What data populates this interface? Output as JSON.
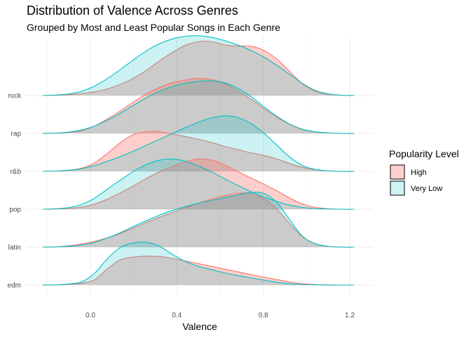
{
  "chart_data": {
    "type": "ridgeline-density",
    "title": "Distribution of Valence Across Genres",
    "subtitle": "Grouped by Most  and Least Popular Songs in Each Genre",
    "xlabel": "Valence",
    "ylabel": "",
    "xlim": [
      -0.3,
      1.3
    ],
    "x_ticks": [
      "0.0",
      "0.4",
      "0.8",
      "1.2"
    ],
    "x_tick_values": [
      0.0,
      0.4,
      0.8,
      1.2
    ],
    "categories": [
      "edm",
      "latin",
      "pop",
      "r&b",
      "rap",
      "rock"
    ],
    "grid": true,
    "legend": {
      "title": "Popularity Level",
      "position": "right",
      "entries": [
        {
          "name": "High",
          "color": "#F8766D"
        },
        {
          "name": "Very Low",
          "color": "#00BFC4"
        }
      ]
    },
    "series": [
      {
        "name": "High",
        "color": "#F8766D",
        "x": [
          -0.22,
          -0.16,
          -0.1,
          -0.04,
          0.02,
          0.08,
          0.14,
          0.2,
          0.26,
          0.32,
          0.38,
          0.44,
          0.5,
          0.56,
          0.62,
          0.68,
          0.74,
          0.8,
          0.86,
          0.92,
          0.98,
          1.04,
          1.1,
          1.16,
          1.22
        ],
        "densities": {
          "edm": [
            0.0,
            0.01,
            0.03,
            0.07,
            0.2,
            0.62,
            0.95,
            1.05,
            1.08,
            1.07,
            1.0,
            0.9,
            0.8,
            0.7,
            0.6,
            0.5,
            0.4,
            0.3,
            0.21,
            0.12,
            0.05,
            0.02,
            0.01,
            0.0,
            0.0
          ],
          "latin": [
            0.0,
            0.01,
            0.05,
            0.12,
            0.22,
            0.35,
            0.52,
            0.72,
            0.93,
            1.12,
            1.3,
            1.48,
            1.65,
            1.8,
            1.93,
            2.02,
            2.0,
            1.83,
            1.45,
            0.9,
            0.4,
            0.13,
            0.03,
            0.0,
            0.0
          ],
          "pop": [
            0.0,
            0.01,
            0.03,
            0.08,
            0.2,
            0.38,
            0.62,
            0.88,
            1.16,
            1.4,
            1.6,
            1.78,
            1.88,
            1.84,
            1.66,
            1.42,
            1.18,
            0.95,
            0.7,
            0.43,
            0.2,
            0.07,
            0.02,
            0.0,
            0.0
          ],
          "r&b": [
            0.0,
            0.01,
            0.04,
            0.12,
            0.32,
            0.68,
            1.08,
            1.38,
            1.48,
            1.48,
            1.4,
            1.3,
            1.2,
            1.08,
            0.94,
            0.82,
            0.7,
            0.6,
            0.47,
            0.3,
            0.15,
            0.06,
            0.02,
            0.0,
            0.0
          ],
          "rap": [
            0.0,
            0.01,
            0.04,
            0.1,
            0.28,
            0.55,
            0.85,
            1.18,
            1.48,
            1.72,
            1.9,
            2.0,
            2.06,
            2.02,
            1.88,
            1.6,
            1.3,
            0.95,
            0.62,
            0.35,
            0.15,
            0.05,
            0.02,
            0.0,
            0.0
          ],
          "rock": [
            0.0,
            0.01,
            0.03,
            0.07,
            0.14,
            0.25,
            0.42,
            0.65,
            0.95,
            1.3,
            1.62,
            1.88,
            2.02,
            2.02,
            1.9,
            1.85,
            1.85,
            1.7,
            1.38,
            0.92,
            0.45,
            0.16,
            0.04,
            0.01,
            0.0
          ]
        }
      },
      {
        "name": "Very Low",
        "color": "#00BFC4",
        "x": [
          -0.22,
          -0.16,
          -0.1,
          -0.04,
          0.02,
          0.08,
          0.14,
          0.2,
          0.26,
          0.32,
          0.38,
          0.44,
          0.5,
          0.56,
          0.62,
          0.68,
          0.74,
          0.8,
          0.86,
          0.92,
          0.98,
          1.04,
          1.1,
          1.16,
          1.22
        ],
        "densities": {
          "edm": [
            0.0,
            0.01,
            0.04,
            0.12,
            0.45,
            1.0,
            1.42,
            1.58,
            1.6,
            1.45,
            1.15,
            0.88,
            0.7,
            0.58,
            0.46,
            0.36,
            0.27,
            0.19,
            0.11,
            0.05,
            0.02,
            0.01,
            0.0,
            0.0,
            0.0
          ],
          "latin": [
            0.0,
            0.01,
            0.03,
            0.08,
            0.18,
            0.35,
            0.55,
            0.78,
            1.0,
            1.2,
            1.38,
            1.52,
            1.65,
            1.75,
            1.85,
            1.95,
            2.05,
            2.02,
            1.7,
            1.05,
            0.42,
            0.13,
            0.03,
            0.0,
            0.0
          ],
          "pop": [
            0.0,
            0.02,
            0.06,
            0.18,
            0.42,
            0.76,
            1.1,
            1.42,
            1.68,
            1.84,
            1.88,
            1.8,
            1.62,
            1.4,
            1.15,
            0.9,
            0.67,
            0.47,
            0.3,
            0.16,
            0.07,
            0.02,
            0.01,
            0.0,
            0.0
          ],
          "r&b": [
            0.0,
            0.01,
            0.04,
            0.1,
            0.22,
            0.38,
            0.56,
            0.76,
            0.98,
            1.2,
            1.42,
            1.64,
            1.84,
            2.0,
            2.08,
            2.02,
            1.8,
            1.45,
            1.0,
            0.55,
            0.22,
            0.07,
            0.02,
            0.0,
            0.0
          ],
          "rap": [
            0.0,
            0.01,
            0.05,
            0.13,
            0.28,
            0.5,
            0.76,
            1.06,
            1.34,
            1.58,
            1.76,
            1.88,
            1.95,
            1.97,
            1.9,
            1.7,
            1.4,
            1.02,
            0.66,
            0.36,
            0.16,
            0.06,
            0.02,
            0.0,
            0.0
          ],
          "rock": [
            0.0,
            0.02,
            0.06,
            0.16,
            0.36,
            0.64,
            0.98,
            1.34,
            1.68,
            1.94,
            2.12,
            2.22,
            2.24,
            2.18,
            2.06,
            1.9,
            1.7,
            1.45,
            1.15,
            0.8,
            0.46,
            0.19,
            0.06,
            0.01,
            0.0
          ]
        }
      }
    ]
  }
}
